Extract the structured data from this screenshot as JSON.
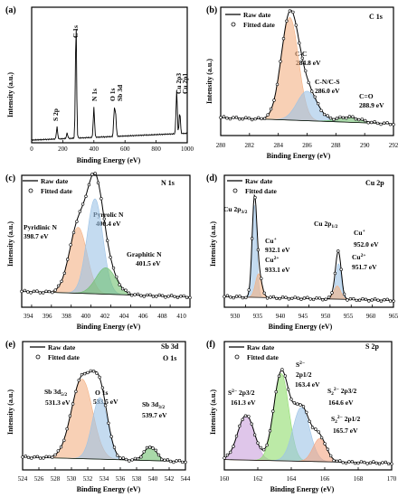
{
  "legend": {
    "raw": "Raw date",
    "fitted": "Fitted date"
  },
  "colors": {
    "axis": "#000000",
    "raw_points": "#000000",
    "fitted": "#000000"
  },
  "chart_data": [
    {
      "panel": "(a)",
      "type": "line",
      "xlabel": "Binding Energy (eV)",
      "ylabel": "Intensity (a.u.)",
      "xlim": [
        0,
        1000
      ],
      "xticks": [
        0,
        200,
        400,
        600,
        800,
        1000
      ],
      "yticks": false,
      "annotations": [
        {
          "text": "S 2p",
          "x": 163
        },
        {
          "text": "C 1s",
          "x": 285
        },
        {
          "text": "N 1s",
          "x": 400
        },
        {
          "text": "O 1s",
          "x": 531
        },
        {
          "text": "Sb 3d",
          "x": 540
        },
        {
          "text": "Cu 2p3",
          "x": 932
        },
        {
          "text": "Cu 2p1",
          "x": 952
        }
      ],
      "series": [
        {
          "peaks": [
            [
              163,
              0.09
            ],
            [
              228,
              0.04
            ],
            [
              285,
              0.85
            ],
            [
              400,
              0.22
            ],
            [
              531,
              0.2
            ],
            [
              540,
              0.16
            ],
            [
              932,
              0.32
            ],
            [
              952,
              0.16
            ]
          ]
        }
      ]
    },
    {
      "panel": "(b)",
      "type": "line",
      "title": "C 1s",
      "xlabel": "Binding Energy (eV)",
      "ylabel": "Intensity (a.u.)",
      "xlim": [
        280,
        292
      ],
      "xticks": [
        280,
        282,
        284,
        286,
        288,
        290,
        292
      ],
      "yticks": false,
      "annotations": [
        "C-C",
        "284.8 eV",
        "C-N/C-S",
        "286.0 eV",
        "C=O",
        "288.9 eV"
      ],
      "series": [
        {
          "name": "C-C",
          "center": 284.8,
          "width": 0.6,
          "height": 0.8,
          "color": "#f4b183"
        },
        {
          "name": "C-N/C-S",
          "center": 286.0,
          "width": 0.7,
          "height": 0.23,
          "color": "#9dc3e6"
        },
        {
          "name": "C=O",
          "center": 288.9,
          "width": 0.8,
          "height": 0.04,
          "color": "#70c070"
        }
      ]
    },
    {
      "panel": "(c)",
      "type": "line",
      "title": "N 1s",
      "xlabel": "Binding Energy (eV)",
      "ylabel": "Intensity (a.u.)",
      "xlim": [
        393,
        410
      ],
      "xticks": [
        394,
        396,
        398,
        400,
        402,
        404,
        406,
        408,
        410
      ],
      "yticks": false,
      "annotations": [
        "Pyridinic N",
        "398.7 eV",
        "Pyrrolic N",
        "400.4 eV",
        "Graphitic N",
        "401.5 eV"
      ],
      "series": [
        {
          "name": "Pyridinic N",
          "center": 398.7,
          "width": 0.9,
          "height": 0.5,
          "color": "#f4b183"
        },
        {
          "name": "Pyrrolic N",
          "center": 400.4,
          "width": 0.8,
          "height": 0.72,
          "color": "#9dc3e6"
        },
        {
          "name": "Graphitic N",
          "center": 401.5,
          "width": 1.0,
          "height": 0.2,
          "color": "#70c070"
        }
      ]
    },
    {
      "panel": "(d)",
      "type": "line",
      "title": "Cu 2p",
      "xlabel": "Binding Energy (eV)",
      "ylabel": "Intensity (a.u.)",
      "xlim": [
        925,
        965
      ],
      "xticks": [
        930,
        935,
        940,
        945,
        950,
        955,
        960,
        965
      ],
      "yticks": false,
      "annotations": [
        "Cu 2p3/2",
        "Cu+",
        "932.1 eV",
        "Cu2+",
        "933.1 eV",
        "Cu 2p1/2",
        "Cu+",
        "952.0 eV",
        "Cu2+",
        "951.7 eV"
      ],
      "series": [
        {
          "name": "Cu+ 2p3/2",
          "center": 932.1,
          "width": 0.55,
          "height": 0.7,
          "color": "#9dc3e6"
        },
        {
          "name": "Cu2+ 2p3/2",
          "center": 933.1,
          "width": 0.75,
          "height": 0.18,
          "color": "#f4b183"
        },
        {
          "name": "Cu+ 2p1/2",
          "center": 952.0,
          "width": 0.65,
          "height": 0.27,
          "color": "#9dc3e6"
        },
        {
          "name": "Cu2+ 2p1/2",
          "center": 951.7,
          "width": 0.8,
          "height": 0.1,
          "color": "#f4b183"
        }
      ]
    },
    {
      "panel": "(e)",
      "type": "line",
      "title": [
        "Sb 3d",
        "O 1s"
      ],
      "xlabel": "Binding Energy (eV)",
      "ylabel": "Intensity (a.u.)",
      "xlim": [
        524,
        544
      ],
      "xticks": [
        524,
        526,
        528,
        530,
        532,
        534,
        536,
        538,
        540,
        542,
        544
      ],
      "yticks": false,
      "annotations": [
        "Sb 3d5/2",
        "531.3 eV",
        "O 1s",
        "533.5 eV",
        "Sb 3d3/2",
        "539.7 eV"
      ],
      "series": [
        {
          "name": "Sb 3d5/2",
          "center": 531.3,
          "width": 1.3,
          "height": 0.62,
          "color": "#f4b183"
        },
        {
          "name": "O 1s",
          "center": 533.5,
          "width": 0.95,
          "height": 0.48,
          "color": "#9dc3e6"
        },
        {
          "name": "Sb 3d3/2",
          "center": 539.7,
          "width": 0.75,
          "height": 0.11,
          "color": "#70c070"
        }
      ]
    },
    {
      "panel": "(f)",
      "type": "line",
      "title": "S 2p",
      "xlabel": "Binding Energy (eV)",
      "ylabel": "Intensity (a.u.)",
      "xlim": [
        160,
        170
      ],
      "xticks": [
        160,
        162,
        164,
        166,
        168,
        170
      ],
      "yticks": false,
      "annotations": [
        "S2- 2p3/2",
        "161.3 eV",
        "S2- 2p1/2",
        "163.4 eV",
        "S22- 2p3/2",
        "164.6 eV",
        "S22- 2p1/2",
        "165.7 eV"
      ],
      "series": [
        {
          "name": "S2- 2p3/2",
          "center": 161.3,
          "width": 0.5,
          "height": 0.35,
          "color": "#c9a0dc"
        },
        {
          "name": "S2- 2p1/2",
          "center": 163.4,
          "width": 0.45,
          "height": 0.68,
          "color": "#8fdc6c"
        },
        {
          "name": "S22- 2p3/2",
          "center": 164.6,
          "width": 0.5,
          "height": 0.42,
          "color": "#9dc3e6"
        },
        {
          "name": "S22- 2p1/2",
          "center": 165.7,
          "width": 0.4,
          "height": 0.18,
          "color": "#f4a582"
        }
      ]
    }
  ]
}
